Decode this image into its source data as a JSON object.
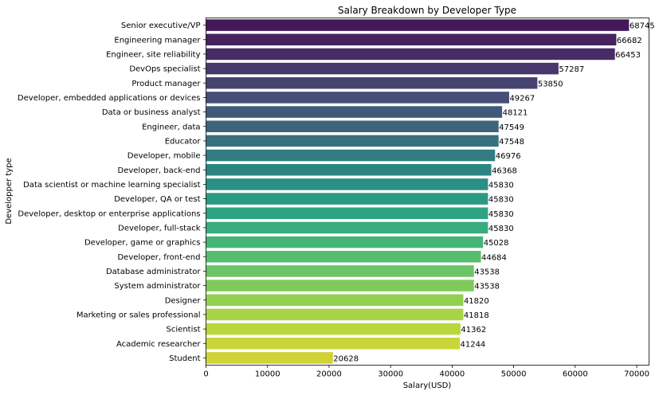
{
  "chart_data": {
    "type": "bar",
    "orientation": "horizontal",
    "title": "Salary Breakdown by Developer Type",
    "xlabel": "Salary(USD)",
    "ylabel": "Developper type",
    "xlim": [
      0,
      72000
    ],
    "xticks": [
      0,
      10000,
      20000,
      30000,
      40000,
      50000,
      60000,
      70000
    ],
    "grid": false,
    "colormap": "viridis",
    "categories": [
      "Senior executive/VP",
      "Engineering manager",
      "Engineer, site reliability",
      "DevOps specialist",
      "Product manager",
      "Developer, embedded applications or devices",
      "Data or business analyst",
      "Engineer, data",
      "Educator",
      "Developer, mobile",
      "Developer, back-end",
      "Data scientist or machine learning specialist",
      "Developer, QA or test",
      "Developer, desktop or enterprise applications",
      "Developer, full-stack",
      "Developer, game or graphics",
      "Developer, front-end",
      "Database administrator",
      "System administrator",
      "Designer",
      "Marketing or sales professional",
      "Scientist",
      "Academic researcher",
      "Student"
    ],
    "values": [
      68745,
      66682,
      66453,
      57287,
      53850,
      49267,
      48121,
      47549,
      47548,
      46976,
      46368,
      45830,
      45830,
      45830,
      45830,
      45028,
      44684,
      43538,
      43538,
      41820,
      41818,
      41362,
      41244,
      20628
    ],
    "value_labels": [
      "68745",
      "66682",
      "66453",
      "57287",
      "53850",
      "49267",
      "48121",
      "47549",
      "47548",
      "46976",
      "46368",
      "45830",
      "45830",
      "45830",
      "45830",
      "45028",
      "44684",
      "43538",
      "43538",
      "41820",
      "41818",
      "41362",
      "41244",
      "20628"
    ],
    "colors": [
      "#421a5a",
      "#46225f",
      "#482c65",
      "#48376b",
      "#474371",
      "#444e76",
      "#405a79",
      "#3c657c",
      "#37707f",
      "#327b81",
      "#2d8583",
      "#2b8f83",
      "#2a9982",
      "#2ea381",
      "#37ac7d",
      "#45b576",
      "#57bd6e",
      "#6bc465",
      "#7fca5b",
      "#93cf50",
      "#a7d346",
      "#b9d63d",
      "#c8d638",
      "#d1d236"
    ]
  }
}
